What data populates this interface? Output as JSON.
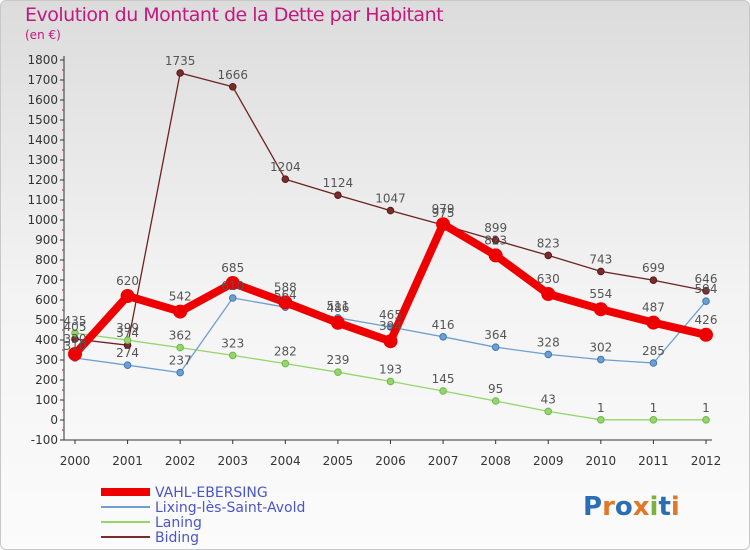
{
  "chart_data": {
    "type": "line",
    "title": "Evolution du Montant de la Dette par Habitant",
    "subtitle": "(en €)",
    "xlabel": "",
    "ylabel": "",
    "ylim": [
      -100,
      1800
    ],
    "yticks": [
      -100,
      0,
      100,
      200,
      300,
      400,
      500,
      600,
      700,
      800,
      900,
      1000,
      1100,
      1200,
      1300,
      1400,
      1500,
      1600,
      1700,
      1800
    ],
    "categories": [
      "2000",
      "2001",
      "2002",
      "2003",
      "2004",
      "2005",
      "2006",
      "2007",
      "2008",
      "2009",
      "2010",
      "2011",
      "2012"
    ],
    "series": [
      {
        "name": "Biding",
        "color": "#7a2b2b",
        "values": [
          405,
          374,
          1735,
          1666,
          1204,
          1124,
          1047,
          975,
          899,
          823,
          743,
          699,
          646
        ]
      },
      {
        "name": "Laning",
        "color": "#95d66b",
        "values": [
          435,
          399,
          362,
          323,
          282,
          239,
          193,
          145,
          95,
          43,
          1,
          1,
          1
        ]
      },
      {
        "name": "Lixing-lès-Saint-Avold",
        "color": "#6f9fd0",
        "values": [
          310,
          274,
          237,
          610,
          564,
          511,
          465,
          416,
          364,
          328,
          302,
          285,
          594
        ]
      },
      {
        "name": "VAHL-EBERSING",
        "color": "#ee0000",
        "values": [
          330,
          620,
          542,
          685,
          588,
          486,
          394,
          979,
          823,
          630,
          554,
          487,
          426
        ]
      }
    ],
    "legend": [
      "VAHL-EBERSING",
      "Lixing-lès-Saint-Avold",
      "Laning",
      "Biding"
    ]
  },
  "logo": {
    "text": "Proxiti",
    "letters": [
      "P",
      "r",
      "o",
      "x",
      "i",
      "t",
      "i"
    ],
    "colors": [
      "#2a6fb5",
      "#e0772a",
      "#2a6fb5",
      "#e0772a",
      "#7ab33c",
      "#2a6fb5",
      "#e0772a"
    ]
  }
}
